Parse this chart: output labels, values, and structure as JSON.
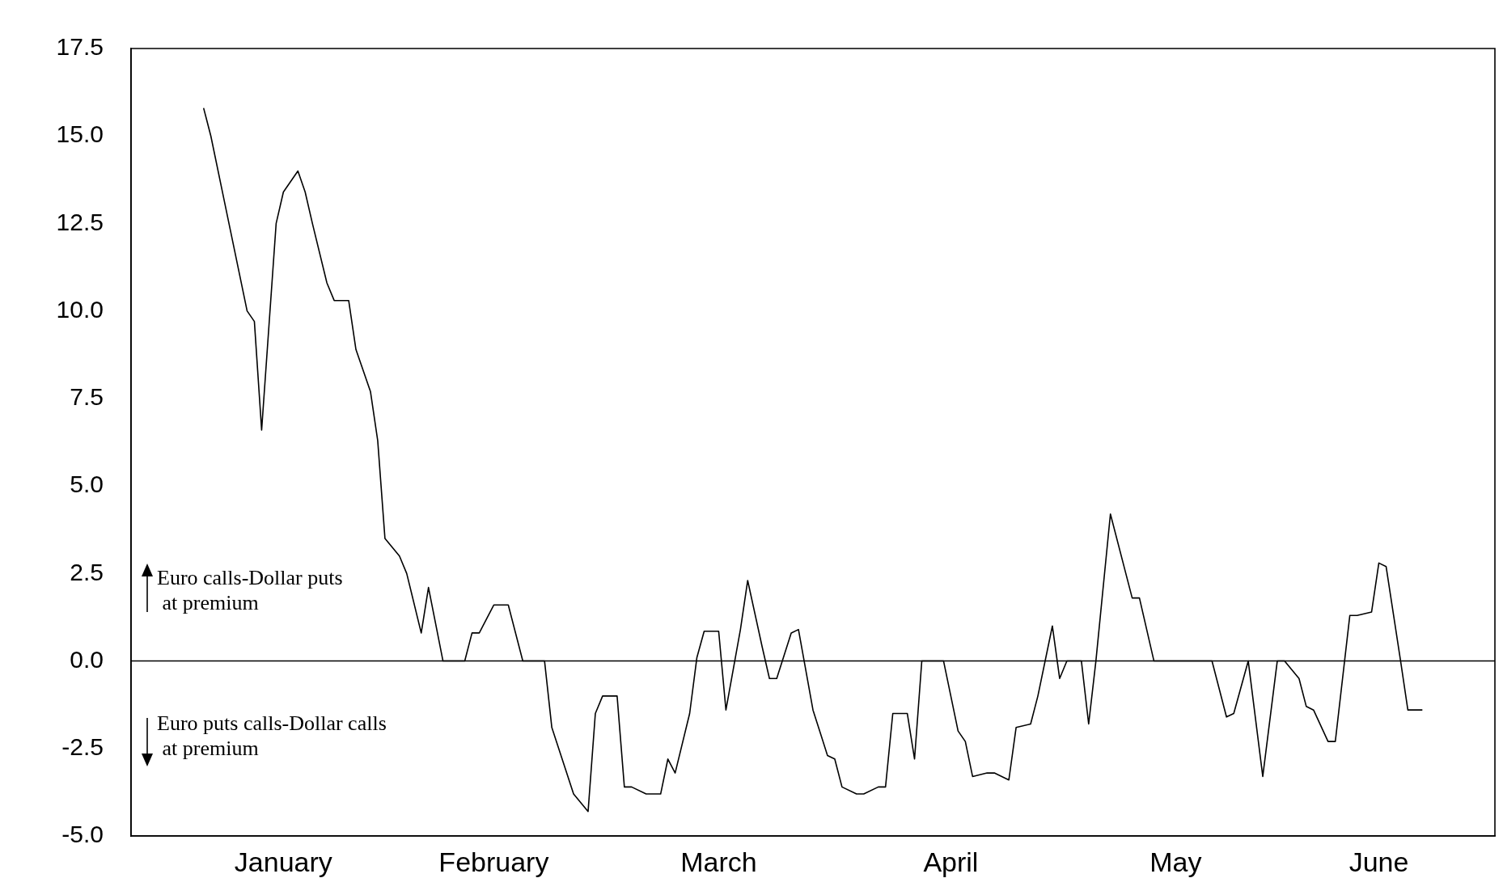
{
  "chart_data": {
    "type": "line",
    "annotations": [
      "Euro calls-Dollar puts\n at premium",
      "Euro puts calls-Dollar calls\n at premium"
    ],
    "x": [
      "--01-11",
      "--01-12",
      "--01-14",
      "--01-15",
      "--01-17",
      "--01-18",
      "--01-19",
      "--01-21",
      "--01-22",
      "--01-24",
      "--01-25",
      "--01-26",
      "--01-28",
      "--01-29",
      "--01-31",
      "--02-01",
      "--02-03",
      "--02-04",
      "--02-05",
      "--02-07",
      "--02-08",
      "--02-10",
      "--02-11",
      "--02-13",
      "--02-16",
      "--02-17",
      "--02-18",
      "--02-20",
      "--02-22",
      "--02-24",
      "--02-27",
      "--02-28",
      "--03-03",
      "--03-05",
      "--03-06",
      "--03-07",
      "--03-09",
      "--03-10",
      "--03-11",
      "--03-13",
      "--03-15",
      "--03-16",
      "--03-17",
      "--03-19",
      "--03-20",
      "--03-21",
      "--03-23",
      "--03-24",
      "--03-26",
      "--03-27",
      "--03-29",
      "--03-30",
      "--03-31",
      "--04-02",
      "--04-03",
      "--04-05",
      "--04-07",
      "--04-08",
      "--04-09",
      "--04-11",
      "--04-12",
      "--04-14",
      "--04-15",
      "--04-16",
      "--04-18",
      "--04-19",
      "--04-20",
      "--04-23",
      "--04-25",
      "--04-26",
      "--04-27",
      "--04-29",
      "--04-30",
      "--05-02",
      "--05-03",
      "--05-05",
      "--05-06",
      "--05-08",
      "--05-09",
      "--05-10",
      "--05-12",
      "--05-13",
      "--05-14",
      "--05-16",
      "--05-19",
      "--05-20",
      "--05-22",
      "--05-30",
      "--06-01",
      "--06-02",
      "--06-04",
      "--06-06",
      "--06-08",
      "--06-09",
      "--06-11",
      "--06-12",
      "--06-13",
      "--06-15",
      "--06-16",
      "--06-18",
      "--06-19",
      "--06-21",
      "--06-22",
      "--06-23",
      "--06-25",
      "--06-26",
      "--06-28"
    ],
    "series": [
      {
        "color": "#000000",
        "values": [
          15.8,
          15.0,
          13.0,
          12.0,
          10.0,
          9.7,
          6.6,
          12.5,
          13.4,
          14.0,
          13.4,
          12.5,
          10.8,
          10.3,
          10.3,
          8.9,
          7.7,
          6.3,
          3.5,
          3.0,
          2.5,
          0.8,
          2.1,
          0,
          0,
          0.8,
          0.8,
          1.6,
          1.6,
          0,
          0,
          -1.9,
          -3.8,
          -4.3,
          -1.5,
          -1.0,
          -1.0,
          -3.6,
          -3.6,
          -3.8,
          -3.8,
          -2.8,
          -3.2,
          -1.5,
          0.1,
          0.85,
          0.85,
          -1.4,
          0.9,
          2.3,
          0.4,
          -0.5,
          -0.5,
          0.8,
          0.9,
          -1.4,
          -2.7,
          -2.8,
          -3.6,
          -3.8,
          -3.8,
          -3.6,
          -3.6,
          -1.5,
          -1.5,
          -2.8,
          0,
          0,
          -2.0,
          -2.3,
          -3.3,
          -3.2,
          -3.2,
          -3.4,
          -1.9,
          -1.8,
          -1.0,
          1.0,
          -0.5,
          0,
          0,
          -1.8,
          0,
          4.2,
          1.8,
          1.8,
          0,
          0,
          -1.6,
          -1.5,
          0,
          -3.3,
          0,
          0,
          -0.5,
          -1.3,
          -1.4,
          -2.3,
          -2.3,
          1.3,
          1.3,
          1.4,
          2.8,
          2.7,
          0,
          -1.4,
          -1.4
        ]
      }
    ],
    "xlim": [
      "--01-01",
      "--07-08"
    ],
    "xticks": [
      {
        "value": "--01-22",
        "label": "January"
      },
      {
        "value": "--02-20",
        "label": "February"
      },
      {
        "value": "--03-23",
        "label": "March"
      },
      {
        "value": "--04-24",
        "label": "April"
      },
      {
        "value": "--05-25",
        "label": "May"
      },
      {
        "value": "--06-22",
        "label": "June"
      }
    ],
    "ylim": [
      -5,
      17.5
    ],
    "yticks": [
      {
        "value": -5,
        "label": "-5.0"
      },
      {
        "value": -2.5,
        "label": "-2.5"
      },
      {
        "value": 0,
        "label": "0.0"
      },
      {
        "value": 2.5,
        "label": "2.5"
      },
      {
        "value": 5,
        "label": "5.0"
      },
      {
        "value": 7.5,
        "label": "7.5"
      },
      {
        "value": 10,
        "label": "10.0"
      },
      {
        "value": 12.5,
        "label": "12.5"
      },
      {
        "value": 15,
        "label": "15.0"
      },
      {
        "value": 17.5,
        "label": "17.5"
      }
    ],
    "ref_lines": [
      {
        "axis": "y",
        "value": 0,
        "color": "#000000"
      }
    ],
    "grid": false,
    "legend": false,
    "marker": "none",
    "line_style": "solid"
  }
}
